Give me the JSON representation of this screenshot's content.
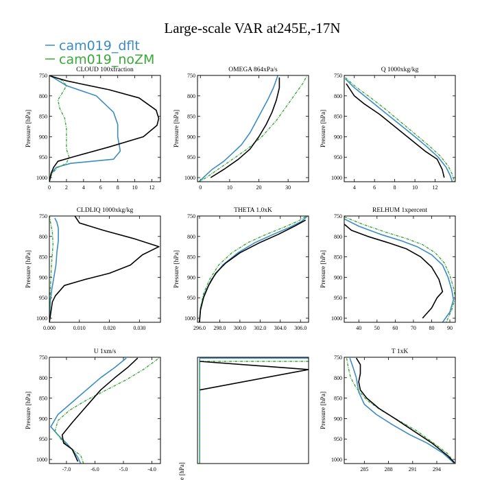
{
  "figure": {
    "title": "Large-scale VAR at245E,-17N",
    "legend": [
      {
        "label": "cam019_dflt",
        "color": "#3b8bc2"
      },
      {
        "label": "cam019_noZM",
        "color": "#3aa83a"
      }
    ],
    "extra_series_color": "#000000",
    "partial_label": "e [hPa]"
  },
  "chart_data": [
    {
      "type": "line",
      "title": "CLOUD  100xfraction",
      "ylabel": "Pressure [hPa]",
      "xlim": [
        0,
        13
      ],
      "ylim": [
        750,
        1010
      ],
      "y_inverted": true,
      "xticks": [
        0,
        2,
        4,
        6,
        8,
        10,
        12
      ],
      "xticklabels": [
        "0",
        "2",
        "4",
        "6",
        "8",
        "10",
        "12"
      ],
      "yticks": [
        750,
        800,
        850,
        900,
        950,
        1000
      ],
      "series": [
        {
          "name": "cam019_dflt",
          "x": [
            0,
            0.2,
            0.8,
            2.5,
            5,
            7.5,
            8.3,
            8,
            8,
            7.5,
            5.5,
            2,
            0.6,
            0.1,
            0
          ],
          "y": [
            1010,
            990,
            975,
            965,
            960,
            955,
            935,
            900,
            870,
            840,
            800,
            775,
            757,
            751,
            750
          ]
        },
        {
          "name": "cam019_noZM",
          "x": [
            0,
            0.3,
            1,
            2,
            2.3,
            2,
            2,
            2,
            1.8,
            1.2,
            1,
            1.6,
            2,
            1.5,
            0.5,
            0
          ],
          "y": [
            1010,
            990,
            975,
            965,
            950,
            930,
            900,
            880,
            855,
            830,
            810,
            790,
            775,
            762,
            753,
            750
          ]
        },
        {
          "name": "",
          "x": [
            0,
            0.2,
            0.5,
            1,
            3,
            7,
            11,
            12.6,
            12.8,
            12.5,
            10.5,
            7,
            4,
            2,
            0.5,
            0
          ],
          "y": [
            1010,
            990,
            975,
            960,
            948,
            925,
            900,
            872,
            855,
            835,
            805,
            785,
            772,
            763,
            754,
            750
          ]
        }
      ]
    },
    {
      "type": "line",
      "title": "OMEGA  864xPa/s",
      "ylabel": "Pressure [hPa]",
      "xlim": [
        -1,
        37
      ],
      "ylim": [
        750,
        1010
      ],
      "y_inverted": true,
      "xticks": [
        0,
        10,
        20,
        30
      ],
      "xticklabels": [
        "0",
        "10",
        "20",
        "30"
      ],
      "yticks": [
        750,
        800,
        850,
        900,
        950,
        1000
      ],
      "series": [
        {
          "name": "cam019_dflt",
          "x": [
            -0.5,
            1,
            4,
            8,
            11,
            14,
            17,
            20,
            23,
            25,
            26,
            26.5
          ],
          "y": [
            1010,
            1000,
            980,
            960,
            940,
            920,
            890,
            850,
            810,
            780,
            760,
            750
          ]
        },
        {
          "name": "cam019_noZM",
          "x": [
            -0.5,
            2,
            6,
            11,
            16,
            21,
            26,
            30,
            33,
            35,
            36.5
          ],
          "y": [
            1010,
            1000,
            980,
            955,
            930,
            900,
            860,
            820,
            790,
            770,
            750
          ]
        },
        {
          "name": "",
          "x": [
            3.5,
            8,
            13,
            17,
            20,
            22.5,
            24.5,
            26,
            27,
            27
          ],
          "y": [
            1000,
            980,
            955,
            930,
            900,
            870,
            840,
            810,
            780,
            755
          ]
        }
      ]
    },
    {
      "type": "line",
      "title": "Q  1000xkg/kg",
      "ylabel": "Pressure [hPa]",
      "xlim": [
        3,
        14
      ],
      "ylim": [
        750,
        1010
      ],
      "y_inverted": true,
      "xticks": [
        4,
        6,
        8,
        10,
        12
      ],
      "xticklabels": [
        "4",
        "6",
        "8",
        "10",
        "12"
      ],
      "yticks": [
        750,
        800,
        850,
        900,
        950,
        1000
      ],
      "series": [
        {
          "name": "cam019_dflt",
          "x": [
            3.1,
            4,
            5.5,
            7,
            8.5,
            10,
            11.2,
            12.3,
            13.1,
            13.5,
            13.7
          ],
          "y": [
            758,
            780,
            810,
            840,
            870,
            900,
            925,
            950,
            975,
            995,
            1010
          ]
        },
        {
          "name": "cam019_noZM",
          "x": [
            3.1,
            4.1,
            5.7,
            7.2,
            8.7,
            10.2,
            11.4,
            12.5,
            13.3,
            13.7,
            13.9
          ],
          "y": [
            755,
            777,
            806,
            835,
            866,
            897,
            922,
            947,
            972,
            992,
            1010
          ]
        },
        {
          "name": "",
          "x": [
            3.2,
            4,
            5,
            6.5,
            8,
            9.5,
            11,
            12.2,
            12.7,
            12.9
          ],
          "y": [
            770,
            800,
            820,
            845,
            875,
            905,
            935,
            955,
            980,
            1000
          ]
        }
      ]
    },
    {
      "type": "line",
      "title": "CLDLIQ  1000xkg/kg",
      "ylabel": "Pressure [hPa]",
      "xlim": [
        0,
        0.037
      ],
      "ylim": [
        750,
        1010
      ],
      "y_inverted": true,
      "xticks": [
        0,
        0.01,
        0.02,
        0.03
      ],
      "xticklabels": [
        "0.000",
        "0.010",
        "0.020",
        "0.030"
      ],
      "yticks": [
        750,
        800,
        850,
        900,
        950,
        1000
      ],
      "series": [
        {
          "name": "cam019_dflt",
          "x": [
            0,
            0.0003,
            0.0008,
            0.0015,
            0.0022,
            0.0025,
            0.003,
            0.003,
            0.0025,
            0.0018
          ],
          "y": [
            1010,
            960,
            930,
            900,
            870,
            840,
            810,
            780,
            765,
            755
          ]
        },
        {
          "name": "cam019_noZM",
          "x": [
            0,
            0.0002,
            0.0005,
            0.0008,
            0.0012,
            0.001,
            0.0005,
            0
          ],
          "y": [
            1010,
            950,
            900,
            860,
            820,
            790,
            770,
            750
          ]
        },
        {
          "name": "",
          "x": [
            0,
            0.001,
            0.002,
            0.005,
            0.012,
            0.02,
            0.027,
            0.031,
            0.0365,
            0.028,
            0.018,
            0.01,
            0.0085
          ],
          "y": [
            1010,
            960,
            945,
            920,
            905,
            890,
            870,
            845,
            825,
            805,
            785,
            767,
            750
          ]
        }
      ]
    },
    {
      "type": "line",
      "title": "THETA  1.0xK",
      "ylabel": "Pressure [hPa]",
      "xlim": [
        295.8,
        306.8
      ],
      "ylim": [
        750,
        1010
      ],
      "y_inverted": true,
      "xticks": [
        296,
        298,
        300,
        302,
        304,
        306
      ],
      "xticklabels": [
        "296.0",
        "298.0",
        "300.0",
        "302.0",
        "304.0",
        "306.0"
      ],
      "yticks": [
        750,
        800,
        850,
        900,
        950,
        1000
      ],
      "series": [
        {
          "name": "cam019_dflt",
          "x": [
            296,
            296.1,
            296.5,
            297.2,
            298.3,
            299.8,
            301.5,
            303.3,
            304.9,
            306.1,
            306.7
          ],
          "y": [
            1010,
            975,
            940,
            905,
            870,
            840,
            815,
            795,
            778,
            763,
            750
          ]
        },
        {
          "name": "cam019_noZM",
          "x": [
            296,
            296.1,
            296.4,
            297,
            297.9,
            299.2,
            300.8,
            302.6,
            304.4,
            305.8,
            306.6
          ],
          "y": [
            1010,
            975,
            940,
            905,
            870,
            840,
            815,
            795,
            777,
            762,
            750
          ]
        },
        {
          "name": "",
          "x": [
            296,
            296.1,
            296.4,
            296.9,
            297.6,
            298.6,
            300,
            301.9,
            303.8,
            305.4,
            306.5
          ],
          "y": [
            1010,
            980,
            950,
            920,
            890,
            865,
            840,
            816,
            795,
            775,
            760
          ]
        }
      ]
    },
    {
      "type": "line",
      "title": "RELHUM  1xpercent",
      "ylabel": "Pressure [hPa]",
      "xlim": [
        32,
        93
      ],
      "ylim": [
        750,
        1010
      ],
      "y_inverted": true,
      "xticks": [
        40,
        50,
        60,
        70,
        80,
        90
      ],
      "xticklabels": [
        "40",
        "50",
        "60",
        "70",
        "80",
        "90"
      ],
      "yticks": [
        750,
        800,
        850,
        900,
        950,
        1000
      ],
      "series": [
        {
          "name": "cam019_dflt",
          "x": [
            32,
            40,
            52,
            63,
            72,
            80,
            86,
            89,
            91,
            92,
            90,
            86
          ],
          "y": [
            757,
            775,
            795,
            810,
            825,
            845,
            870,
            900,
            930,
            955,
            985,
            1010
          ]
        },
        {
          "name": "cam019_noZM",
          "x": [
            32,
            42,
            55,
            66,
            75,
            82,
            87,
            90,
            92,
            93,
            91,
            88
          ],
          "y": [
            752,
            770,
            790,
            805,
            820,
            840,
            865,
            895,
            925,
            950,
            980,
            1010
          ]
        },
        {
          "name": "",
          "x": [
            32,
            36,
            45,
            56,
            66,
            74,
            80,
            84,
            86,
            83,
            80,
            75
          ],
          "y": [
            770,
            785,
            800,
            815,
            830,
            850,
            875,
            905,
            935,
            950,
            975,
            1000
          ]
        }
      ]
    },
    {
      "type": "line",
      "title": "U  1xm/s",
      "ylabel": "Pressure [hPa]",
      "xlim": [
        -7.6,
        -3.7
      ],
      "ylim": [
        750,
        1010
      ],
      "y_inverted": true,
      "xticks": [
        -7.0,
        -6.0,
        -5.0,
        -4.0
      ],
      "xticklabels": [
        "-7.0",
        "-6.0",
        "-5.0",
        "-4.0"
      ],
      "yticks": [
        750,
        800,
        850,
        900,
        950,
        1000
      ],
      "series": [
        {
          "name": "cam019_dflt",
          "x": [
            -6.5,
            -6.6,
            -6.75,
            -7.0,
            -7.3,
            -7.55,
            -7.3,
            -6.8,
            -6.3,
            -5.8,
            -5.3,
            -4.9
          ],
          "y": [
            1010,
            995,
            980,
            960,
            940,
            920,
            890,
            860,
            830,
            800,
            775,
            752
          ]
        },
        {
          "name": "cam019_noZM",
          "x": [
            -6.4,
            -6.5,
            -6.9,
            -7.2,
            -7.4,
            -7.3,
            -6.9,
            -6.3,
            -5.6,
            -4.9,
            -4.3,
            -3.75
          ],
          "y": [
            1010,
            990,
            970,
            950,
            930,
            905,
            880,
            855,
            830,
            805,
            780,
            752
          ]
        },
        {
          "name": "",
          "x": [
            -6.6,
            -6.7,
            -6.8,
            -7.1,
            -7.15,
            -6.8,
            -6.3,
            -5.8,
            -5.3,
            -4.85,
            -4.5
          ],
          "y": [
            1005,
            990,
            975,
            960,
            940,
            910,
            870,
            830,
            800,
            775,
            752
          ]
        }
      ]
    },
    {
      "type": "line",
      "title": "",
      "ylabel": "",
      "xlim": [
        0,
        1
      ],
      "ylim": [
        750,
        1010
      ],
      "y_inverted": true,
      "xticks": [],
      "xticklabels": [],
      "yticks": [],
      "series": [
        {
          "name": "",
          "x": [
            0.02,
            0.02,
            1
          ],
          "y": [
            1010,
            752,
            752
          ]
        },
        {
          "name": "",
          "x": [
            0.02,
            0.02,
            1
          ],
          "y": [
            1010,
            760,
            760
          ]
        },
        {
          "name": "",
          "x": [
            0.02,
            1,
            0.02
          ],
          "y": [
            760,
            780,
            830
          ]
        }
      ]
    },
    {
      "type": "line",
      "title": "T  1xK",
      "ylabel": "Pressure [hPa]",
      "xlim": [
        282.5,
        296.3
      ],
      "ylim": [
        750,
        1010
      ],
      "y_inverted": true,
      "xticks": [
        285,
        288,
        291,
        294
      ],
      "xticklabels": [
        "285",
        "288",
        "291",
        "294"
      ],
      "yticks": [
        750,
        800,
        850,
        900,
        950,
        1000
      ],
      "series": [
        {
          "name": "cam019_dflt",
          "x": [
            283.2,
            283.6,
            284,
            284.3,
            285,
            286.5,
            288.5,
            290.7,
            292.8,
            294.8,
            296.2
          ],
          "y": [
            752,
            775,
            800,
            835,
            865,
            890,
            915,
            940,
            960,
            985,
            1010
          ]
        },
        {
          "name": "cam019_noZM",
          "x": [
            282.8,
            283,
            283.3,
            284,
            285.3,
            287.1,
            289.3,
            291.5,
            293.6,
            295.3,
            296.2
          ],
          "y": [
            752,
            775,
            800,
            825,
            855,
            880,
            905,
            930,
            960,
            985,
            1008
          ]
        },
        {
          "name": "",
          "x": [
            284,
            284.5,
            284.5,
            284.3,
            284.5,
            285.3,
            286.8,
            288.8,
            291.1,
            293.4,
            295.3,
            296.2
          ],
          "y": [
            752,
            768,
            790,
            810,
            830,
            850,
            875,
            900,
            930,
            960,
            990,
            1008
          ]
        }
      ]
    }
  ]
}
